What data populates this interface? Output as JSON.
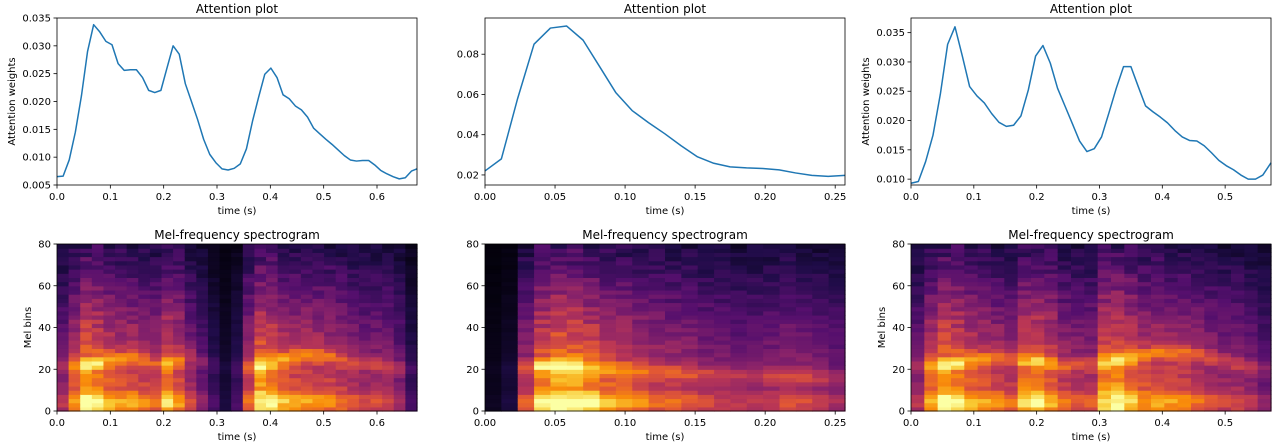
{
  "chart_data": [
    {
      "type": "line",
      "title": "Attention plot",
      "xlabel": "time (s)",
      "ylabel": "Attention weights",
      "xlim": [
        0,
        0.675
      ],
      "ylim": [
        0.005,
        0.035
      ],
      "xticks": [
        0.0,
        0.1,
        0.2,
        0.3,
        0.4,
        0.5,
        0.6
      ],
      "xtick_labels": [
        "0.0",
        "0.1",
        "0.2",
        "0.3",
        "0.4",
        "0.5",
        "0.6"
      ],
      "yticks": [
        0.005,
        0.01,
        0.015,
        0.02,
        0.025,
        0.03,
        0.035
      ],
      "ytick_labels": [
        "0.005",
        "0.010",
        "0.015",
        "0.020",
        "0.025",
        "0.030",
        "0.035"
      ],
      "grid": false,
      "x": [
        0.0,
        0.0115,
        0.0229,
        0.0344,
        0.0458,
        0.0573,
        0.0687,
        0.0802,
        0.0917,
        0.1031,
        0.1146,
        0.126,
        0.1375,
        0.1489,
        0.1604,
        0.1719,
        0.1833,
        0.1948,
        0.2062,
        0.2177,
        0.2292,
        0.2406,
        0.2521,
        0.2635,
        0.275,
        0.2864,
        0.2979,
        0.3094,
        0.3208,
        0.3323,
        0.3437,
        0.3552,
        0.3667,
        0.3781,
        0.3896,
        0.401,
        0.4125,
        0.4239,
        0.4354,
        0.4469,
        0.4583,
        0.4698,
        0.4812,
        0.4927,
        0.5042,
        0.5156,
        0.5271,
        0.5385,
        0.55,
        0.5615,
        0.5729,
        0.5844,
        0.5958,
        0.6073,
        0.6187,
        0.6302,
        0.6417,
        0.6531,
        0.6646,
        0.675
      ],
      "y": [
        0.0065,
        0.0066,
        0.0095,
        0.0145,
        0.021,
        0.029,
        0.0338,
        0.0325,
        0.0308,
        0.0302,
        0.0268,
        0.0256,
        0.0257,
        0.0257,
        0.0243,
        0.022,
        0.0216,
        0.022,
        0.026,
        0.03,
        0.0285,
        0.0232,
        0.02,
        0.0168,
        0.0132,
        0.0105,
        0.009,
        0.0079,
        0.0077,
        0.008,
        0.0088,
        0.0115,
        0.0165,
        0.0208,
        0.0249,
        0.026,
        0.0243,
        0.0212,
        0.0205,
        0.0192,
        0.0185,
        0.0172,
        0.0152,
        0.0142,
        0.0132,
        0.0123,
        0.0113,
        0.0103,
        0.0095,
        0.0093,
        0.0094,
        0.0094,
        0.0086,
        0.0076,
        0.007,
        0.0065,
        0.0061,
        0.0063,
        0.0075,
        0.0079
      ]
    },
    {
      "type": "line",
      "title": "Attention plot",
      "xlabel": "time (s)",
      "ylabel": "",
      "xlim": [
        0,
        0.257
      ],
      "ylim": [
        0.015,
        0.098
      ],
      "xticks": [
        0.0,
        0.05,
        0.1,
        0.15,
        0.2,
        0.25
      ],
      "xtick_labels": [
        "0.00",
        "0.05",
        "0.10",
        "0.15",
        "0.20",
        "0.25"
      ],
      "yticks": [
        0.02,
        0.04,
        0.06,
        0.08
      ],
      "ytick_labels": [
        "0.02",
        "0.04",
        "0.06",
        "0.08"
      ],
      "grid": false,
      "x": [
        0.0,
        0.0117,
        0.0233,
        0.035,
        0.0467,
        0.0583,
        0.07,
        0.0817,
        0.0933,
        0.105,
        0.1167,
        0.1283,
        0.14,
        0.1517,
        0.1633,
        0.175,
        0.1867,
        0.1983,
        0.21,
        0.2217,
        0.2333,
        0.245,
        0.257
      ],
      "y": [
        0.022,
        0.028,
        0.058,
        0.085,
        0.093,
        0.094,
        0.087,
        0.074,
        0.061,
        0.052,
        0.046,
        0.0405,
        0.0345,
        0.029,
        0.0258,
        0.024,
        0.0235,
        0.0232,
        0.0225,
        0.021,
        0.0198,
        0.0193,
        0.0198
      ]
    },
    {
      "type": "line",
      "title": "Attention plot",
      "xlabel": "time (s)",
      "ylabel": "Attention weights",
      "xlim": [
        0,
        0.573
      ],
      "ylim": [
        0.009,
        0.0375
      ],
      "xticks": [
        0.0,
        0.1,
        0.2,
        0.3,
        0.4,
        0.5
      ],
      "xtick_labels": [
        "0.0",
        "0.1",
        "0.2",
        "0.3",
        "0.4",
        "0.5"
      ],
      "yticks": [
        0.01,
        0.015,
        0.02,
        0.025,
        0.03,
        0.035
      ],
      "ytick_labels": [
        "0.010",
        "0.015",
        "0.020",
        "0.025",
        "0.030",
        "0.035"
      ],
      "grid": false,
      "x": [
        0.0,
        0.0117,
        0.0233,
        0.035,
        0.0467,
        0.0583,
        0.07,
        0.0817,
        0.0933,
        0.105,
        0.1167,
        0.1283,
        0.14,
        0.1517,
        0.1633,
        0.175,
        0.1867,
        0.1983,
        0.21,
        0.2217,
        0.2333,
        0.245,
        0.2567,
        0.2683,
        0.28,
        0.2917,
        0.3033,
        0.315,
        0.3267,
        0.3383,
        0.35,
        0.3617,
        0.3733,
        0.385,
        0.3967,
        0.4083,
        0.42,
        0.4317,
        0.4433,
        0.455,
        0.4667,
        0.4783,
        0.49,
        0.5017,
        0.5133,
        0.525,
        0.5367,
        0.5483,
        0.56,
        0.573
      ],
      "y": [
        0.0093,
        0.0096,
        0.013,
        0.0175,
        0.0245,
        0.033,
        0.036,
        0.031,
        0.0258,
        0.0242,
        0.023,
        0.0212,
        0.0197,
        0.019,
        0.0192,
        0.0208,
        0.0252,
        0.031,
        0.0328,
        0.0298,
        0.0255,
        0.0225,
        0.0195,
        0.0165,
        0.0147,
        0.0152,
        0.0172,
        0.0213,
        0.0255,
        0.0292,
        0.0292,
        0.0258,
        0.0225,
        0.0215,
        0.0206,
        0.0196,
        0.0183,
        0.0172,
        0.0166,
        0.0165,
        0.0157,
        0.0145,
        0.0132,
        0.0123,
        0.0116,
        0.0107,
        0.01,
        0.01,
        0.0107,
        0.0128
      ]
    },
    {
      "type": "heatmap",
      "title": "Mel-frequency spectrogram",
      "xlabel": "time (s)",
      "ylabel": "Mel bins",
      "colormap": "inferno",
      "xlim": [
        0,
        0.675
      ],
      "ylim": [
        0,
        80
      ],
      "xticks": [
        0.0,
        0.1,
        0.2,
        0.3,
        0.4,
        0.5,
        0.6
      ],
      "xtick_labels": [
        "0.0",
        "0.1",
        "0.2",
        "0.3",
        "0.4",
        "0.5",
        "0.6"
      ],
      "yticks": [
        0,
        20,
        40,
        60,
        80
      ],
      "ytick_labels": [
        "0",
        "20",
        "40",
        "60",
        "80"
      ],
      "energy": [
        0.45,
        0.7,
        0.9,
        0.85,
        0.75,
        0.7,
        0.7,
        0.65,
        0.6,
        0.8,
        0.7,
        0.5,
        0.35,
        0.2,
        0.1,
        0.2,
        0.6,
        0.9,
        0.85,
        0.75,
        0.7,
        0.7,
        0.68,
        0.65,
        0.6,
        0.55,
        0.5,
        0.52,
        0.5,
        0.4,
        0.2
      ],
      "harmonic_band": [
        [
          0.0,
          22
        ],
        [
          0.05,
          22
        ],
        [
          0.1,
          25
        ],
        [
          0.15,
          25
        ],
        [
          0.2,
          22
        ],
        [
          0.25,
          26
        ],
        [
          0.3,
          22
        ],
        [
          0.35,
          20
        ],
        [
          0.4,
          23
        ],
        [
          0.45,
          27
        ],
        [
          0.5,
          27
        ],
        [
          0.55,
          24
        ],
        [
          0.6,
          22
        ],
        [
          0.675,
          20
        ]
      ]
    },
    {
      "type": "heatmap",
      "title": "Mel-frequency spectrogram",
      "xlabel": "time (s)",
      "ylabel": "",
      "colormap": "inferno",
      "xlim": [
        0,
        0.257
      ],
      "ylim": [
        0,
        80
      ],
      "xticks": [
        0.0,
        0.05,
        0.1,
        0.15,
        0.2,
        0.25
      ],
      "xtick_labels": [
        "0.00",
        "0.05",
        "0.10",
        "0.15",
        "0.20",
        "0.25"
      ],
      "yticks": [
        0,
        20,
        40,
        60,
        80
      ],
      "ytick_labels": [
        "0",
        "20",
        "40",
        "60",
        "80"
      ],
      "energy": [
        0.05,
        0.1,
        0.55,
        0.85,
        0.95,
        0.92,
        0.85,
        0.75,
        0.7,
        0.65,
        0.6,
        0.58,
        0.55,
        0.5,
        0.48,
        0.45,
        0.45,
        0.48,
        0.52,
        0.5,
        0.45,
        0.4
      ],
      "harmonic_band": [
        [
          0.0,
          20
        ],
        [
          0.05,
          22
        ],
        [
          0.1,
          20
        ],
        [
          0.15,
          18
        ],
        [
          0.2,
          17
        ],
        [
          0.257,
          16
        ]
      ]
    },
    {
      "type": "heatmap",
      "title": "Mel-frequency spectrogram",
      "xlabel": "time (s)",
      "ylabel": "Mel bins",
      "colormap": "inferno",
      "xlim": [
        0,
        0.573
      ],
      "ylim": [
        0,
        80
      ],
      "xticks": [
        0.0,
        0.1,
        0.2,
        0.3,
        0.4,
        0.5
      ],
      "xtick_labels": [
        "0.0",
        "0.1",
        "0.2",
        "0.3",
        "0.4",
        "0.5"
      ],
      "yticks": [
        0,
        20,
        40,
        60,
        80
      ],
      "ytick_labels": [
        "0",
        "20",
        "40",
        "60",
        "80"
      ],
      "energy": [
        0.45,
        0.75,
        0.9,
        0.85,
        0.75,
        0.7,
        0.65,
        0.6,
        0.8,
        0.85,
        0.75,
        0.6,
        0.55,
        0.55,
        0.85,
        0.9,
        0.8,
        0.7,
        0.7,
        0.68,
        0.65,
        0.6,
        0.55,
        0.5,
        0.5,
        0.45,
        0.35
      ],
      "harmonic_band": [
        [
          0.0,
          22
        ],
        [
          0.05,
          22
        ],
        [
          0.1,
          25
        ],
        [
          0.15,
          25
        ],
        [
          0.2,
          24
        ],
        [
          0.25,
          22
        ],
        [
          0.3,
          23
        ],
        [
          0.35,
          26
        ],
        [
          0.4,
          29
        ],
        [
          0.45,
          28
        ],
        [
          0.5,
          24
        ],
        [
          0.573,
          20
        ]
      ]
    }
  ]
}
